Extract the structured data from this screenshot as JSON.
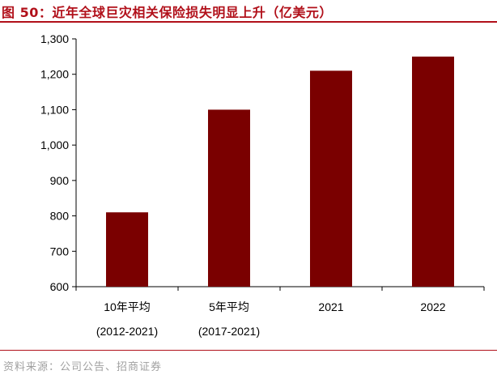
{
  "header": {
    "title": "图 50：近年全球巨灾相关保险损失明显上升（亿美元）"
  },
  "chart_data": {
    "type": "bar",
    "categories": [
      {
        "label": "10年平均",
        "sub": "(2012-2021)"
      },
      {
        "label": "5年平均",
        "sub": "(2017-2021)"
      },
      {
        "label": "2021",
        "sub": ""
      },
      {
        "label": "2022",
        "sub": ""
      }
    ],
    "values": [
      810,
      1100,
      1210,
      1250
    ],
    "ylim": [
      600,
      1300
    ],
    "yticks": [
      "600",
      "700",
      "800",
      "900",
      "1,000",
      "1,100",
      "1,200",
      "1,300"
    ],
    "grid": false,
    "legend": "none",
    "bar_color": "#7a0000",
    "title": "",
    "xlabel": "",
    "ylabel": ""
  },
  "footer": {
    "source": "资料来源：公司公告、招商证券"
  },
  "colors": {
    "accent": "#b1101a",
    "bar": "#7a0000",
    "source_text": "#a0a0a0"
  }
}
